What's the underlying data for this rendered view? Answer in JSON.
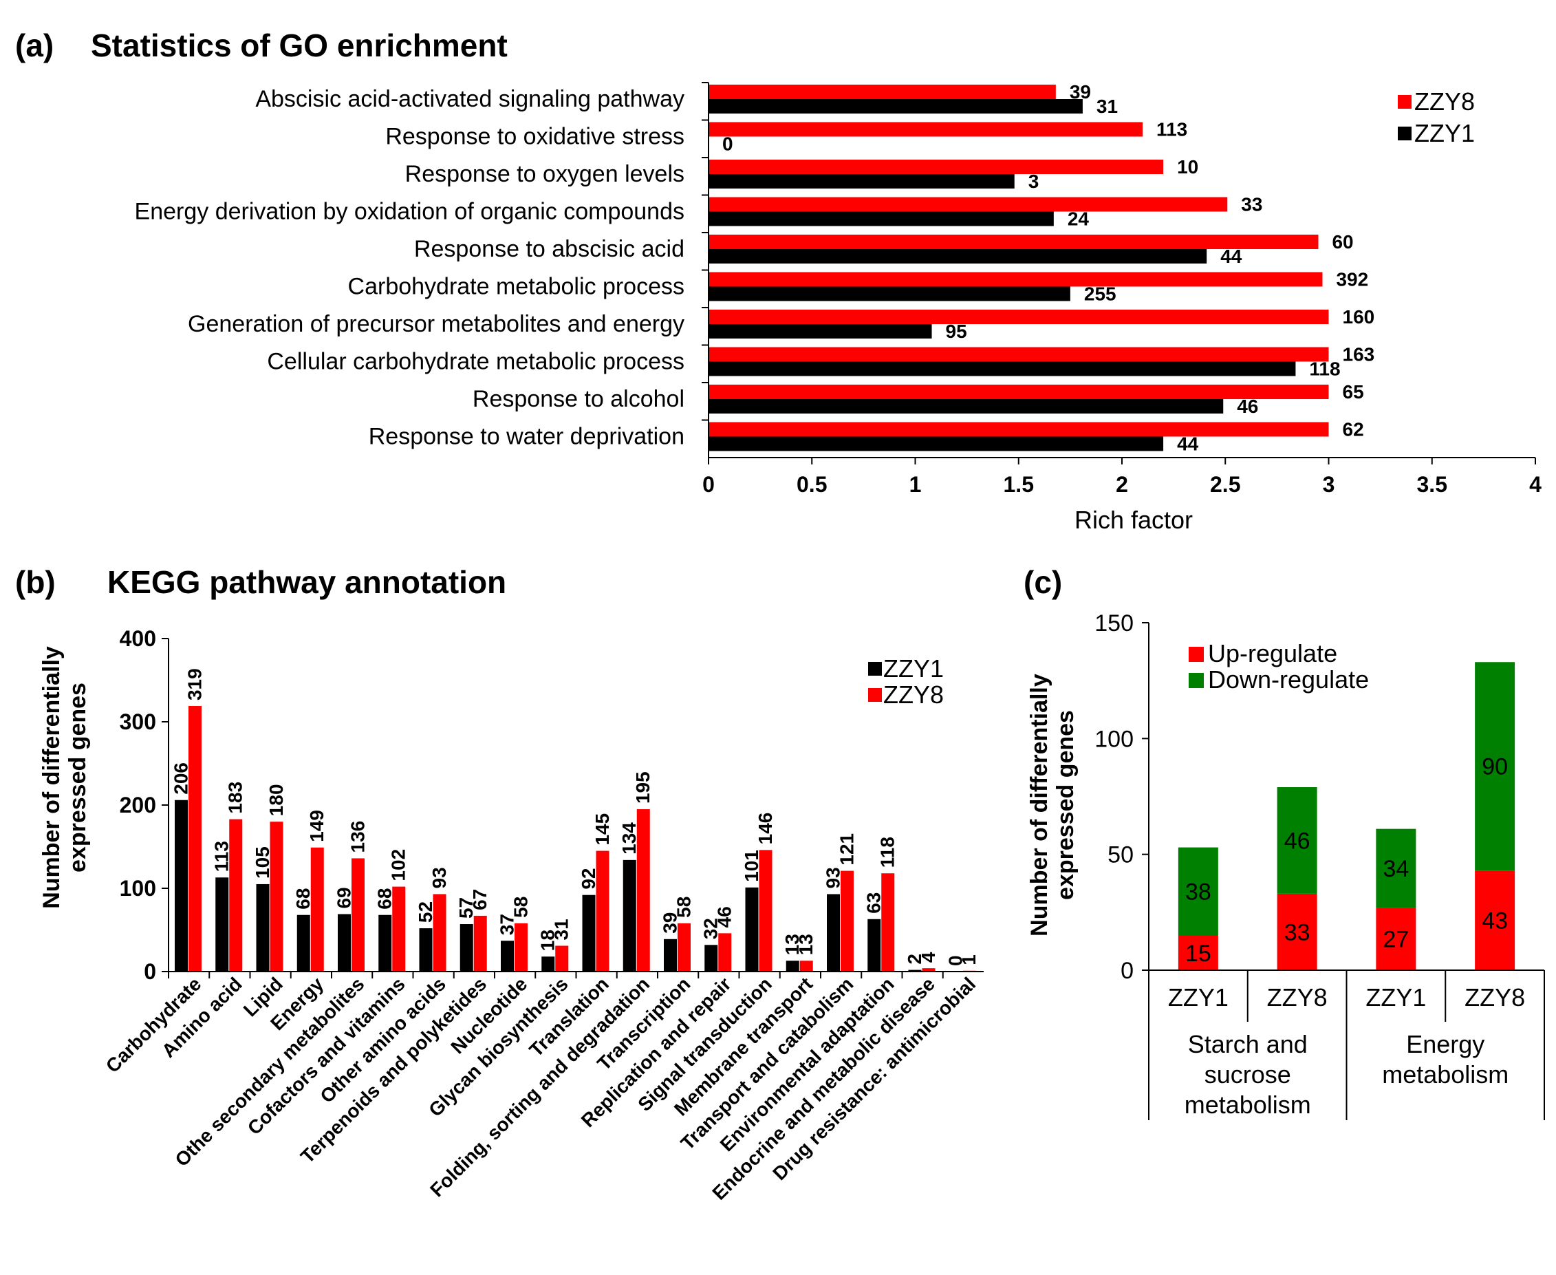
{
  "colors": {
    "zzy8": "#ff0000",
    "zzy1": "#000000",
    "up": "#ff0000",
    "down": "#008000"
  },
  "panel_a": {
    "label": "(a)",
    "title": "Statistics of GO enrichment",
    "xlabel": "Rich factor",
    "x_ticks": [
      "0",
      "0.5",
      "1",
      "1.5",
      "2",
      "2.5",
      "3",
      "3.5",
      "4"
    ],
    "legend": [
      "ZZY8",
      "ZZY1"
    ]
  },
  "panel_b": {
    "label": "(b)",
    "title": "KEGG pathway annotation",
    "ylabel_line1": "Number of differentially",
    "ylabel_line2": "expressed genes",
    "y_ticks": [
      "0",
      "100",
      "200",
      "300",
      "400"
    ],
    "legend": [
      "ZZY1",
      "ZZY8"
    ]
  },
  "panel_c": {
    "label": "(c)",
    "ylabel_line1": "Number of differentially",
    "ylabel_line2": "expressed genes",
    "y_ticks": [
      "0",
      "50",
      "100",
      "150"
    ],
    "legend": [
      "Up-regulate",
      "Down-regulate"
    ],
    "bar_labels": [
      "ZZY1",
      "ZZY8",
      "ZZY1",
      "ZZY8"
    ],
    "groups": [
      {
        "lines": [
          "Starch and",
          "sucrose",
          "metabolism"
        ]
      },
      {
        "lines": [
          "Energy",
          "metabolism"
        ]
      }
    ]
  },
  "chart_data": [
    {
      "type": "bar",
      "orientation": "horizontal",
      "title": "Statistics of GO enrichment",
      "xlabel": "Rich factor",
      "xlim": [
        0,
        4
      ],
      "categories": [
        "Abscisic acid-activated signaling pathway",
        "Response to oxidative stress",
        "Response to oxygen levels",
        "Energy derivation by oxidation of organic compounds",
        "Response to abscisic acid",
        "Carbohydrate metabolic process",
        "Generation of precursor metabolites and energy",
        "Cellular carbohydrate metabolic process",
        "Response to alcohol",
        "Response to water deprivation"
      ],
      "series": [
        {
          "name": "ZZY8",
          "values": [
            1.68,
            2.1,
            2.2,
            2.51,
            2.95,
            2.97,
            3.0,
            3.0,
            3.0,
            3.0
          ],
          "labels": [
            "39",
            "113",
            "10",
            "33",
            "60",
            "392",
            "160",
            "163",
            "65",
            "62"
          ]
        },
        {
          "name": "ZZY1",
          "values": [
            1.81,
            0.0,
            1.48,
            1.67,
            2.41,
            1.75,
            1.08,
            2.84,
            2.49,
            2.2
          ],
          "labels": [
            "31",
            "0",
            "3",
            "24",
            "44",
            "255",
            "95",
            "118",
            "46",
            "44"
          ]
        }
      ],
      "legend_position": "top-right"
    },
    {
      "type": "bar",
      "title": "KEGG pathway annotation",
      "ylabel": "Number of differentially expressed genes",
      "ylim": [
        0,
        400
      ],
      "categories": [
        "Carbohydrate",
        "Amino acid",
        "Lipid",
        "Energy",
        "Othe secondary metabolites",
        "Cofactors and vitamins",
        "Other amino acids",
        "Terpenoids and polyketides",
        "Nucleotide",
        "Glycan biosynthesis",
        "Translation",
        "Folding, sorting and degradation",
        "Transcription",
        "Replication and repair",
        "Signal transduction",
        "Membrane transport",
        "Transport and catabolism",
        "Environmental adaptation",
        "Endocrine and metabolic disease",
        "Drug resistance: antimicrobial"
      ],
      "series": [
        {
          "name": "ZZY1",
          "values": [
            206,
            113,
            105,
            68,
            69,
            68,
            52,
            57,
            37,
            18,
            92,
            134,
            39,
            32,
            101,
            13,
            93,
            63,
            2,
            0
          ]
        },
        {
          "name": "ZZY8",
          "values": [
            319,
            183,
            180,
            149,
            136,
            102,
            93,
            67,
            58,
            31,
            145,
            195,
            58,
            46,
            146,
            13,
            121,
            118,
            4,
            1
          ]
        }
      ],
      "legend_position": "top-right"
    },
    {
      "type": "bar",
      "stacked": true,
      "ylabel": "Number of differentially expressed genes",
      "ylim": [
        0,
        150
      ],
      "categories": [
        "ZZY1",
        "ZZY8",
        "ZZY1",
        "ZZY8"
      ],
      "groups": [
        "Starch and sucrose metabolism",
        "Energy metabolism"
      ],
      "series": [
        {
          "name": "Up-regulate",
          "values": [
            15,
            33,
            27,
            43
          ]
        },
        {
          "name": "Down-regulate",
          "values": [
            38,
            46,
            34,
            90
          ]
        }
      ],
      "legend_position": "top-left"
    }
  ]
}
